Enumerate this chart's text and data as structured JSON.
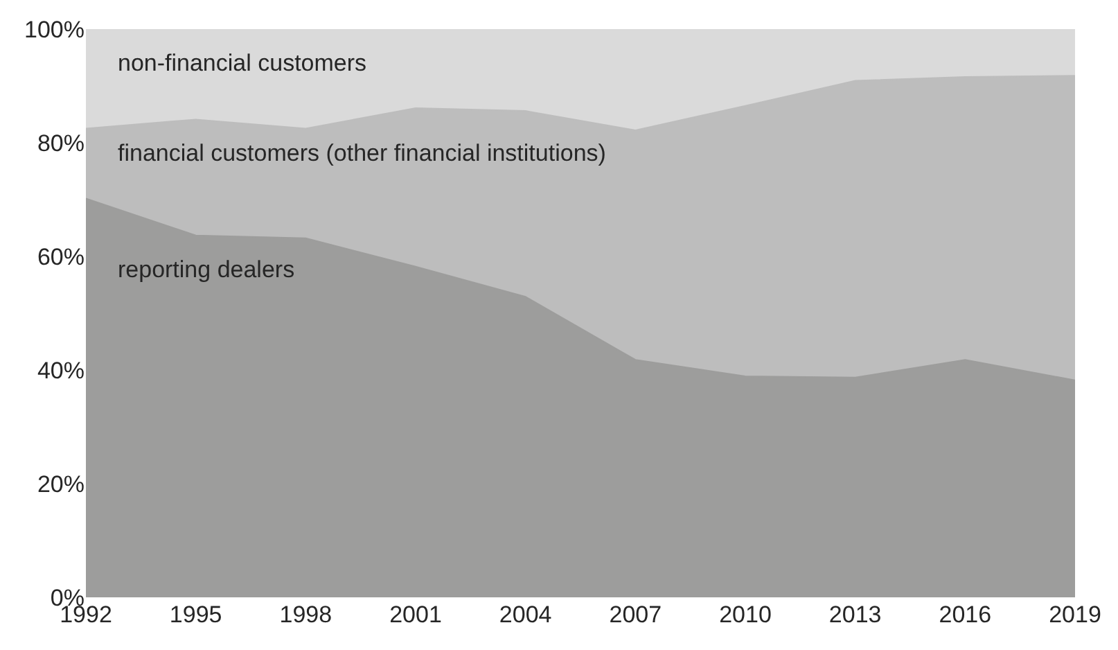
{
  "chart_data": {
    "type": "area",
    "stacked": true,
    "legend": false,
    "x": [
      1992,
      1995,
      1998,
      2001,
      2004,
      2007,
      2010,
      2013,
      2016,
      2019
    ],
    "xlim": [
      1992,
      2019
    ],
    "xticks": [
      1992,
      1995,
      1998,
      2001,
      2004,
      2007,
      2010,
      2013,
      2016,
      2019
    ],
    "ylim": [
      0,
      100
    ],
    "yticks": [
      {
        "value": 0,
        "label": "0%"
      },
      {
        "value": 20,
        "label": "20%"
      },
      {
        "value": 40,
        "label": "40%"
      },
      {
        "value": 60,
        "label": "60%"
      },
      {
        "value": 80,
        "label": "80%"
      },
      {
        "value": 100,
        "label": "100%"
      }
    ],
    "series": [
      {
        "name": "reporting dealers",
        "color": "#9d9d9c",
        "values": [
          70.2,
          63.7,
          63.2,
          58.2,
          52.9,
          41.8,
          38.9,
          38.7,
          41.8,
          38.2
        ]
      },
      {
        "name": "financial customers (other financial institutions)",
        "color": "#bdbdbd",
        "values": [
          12.3,
          20.4,
          19.3,
          27.9,
          32.7,
          40.4,
          47.6,
          52.2,
          49.8,
          53.6
        ]
      },
      {
        "name": "non-financial customers",
        "color": "#dadada",
        "values": [
          17.5,
          15.9,
          17.5,
          13.9,
          14.4,
          17.8,
          13.5,
          9.1,
          8.4,
          8.2
        ]
      }
    ]
  }
}
